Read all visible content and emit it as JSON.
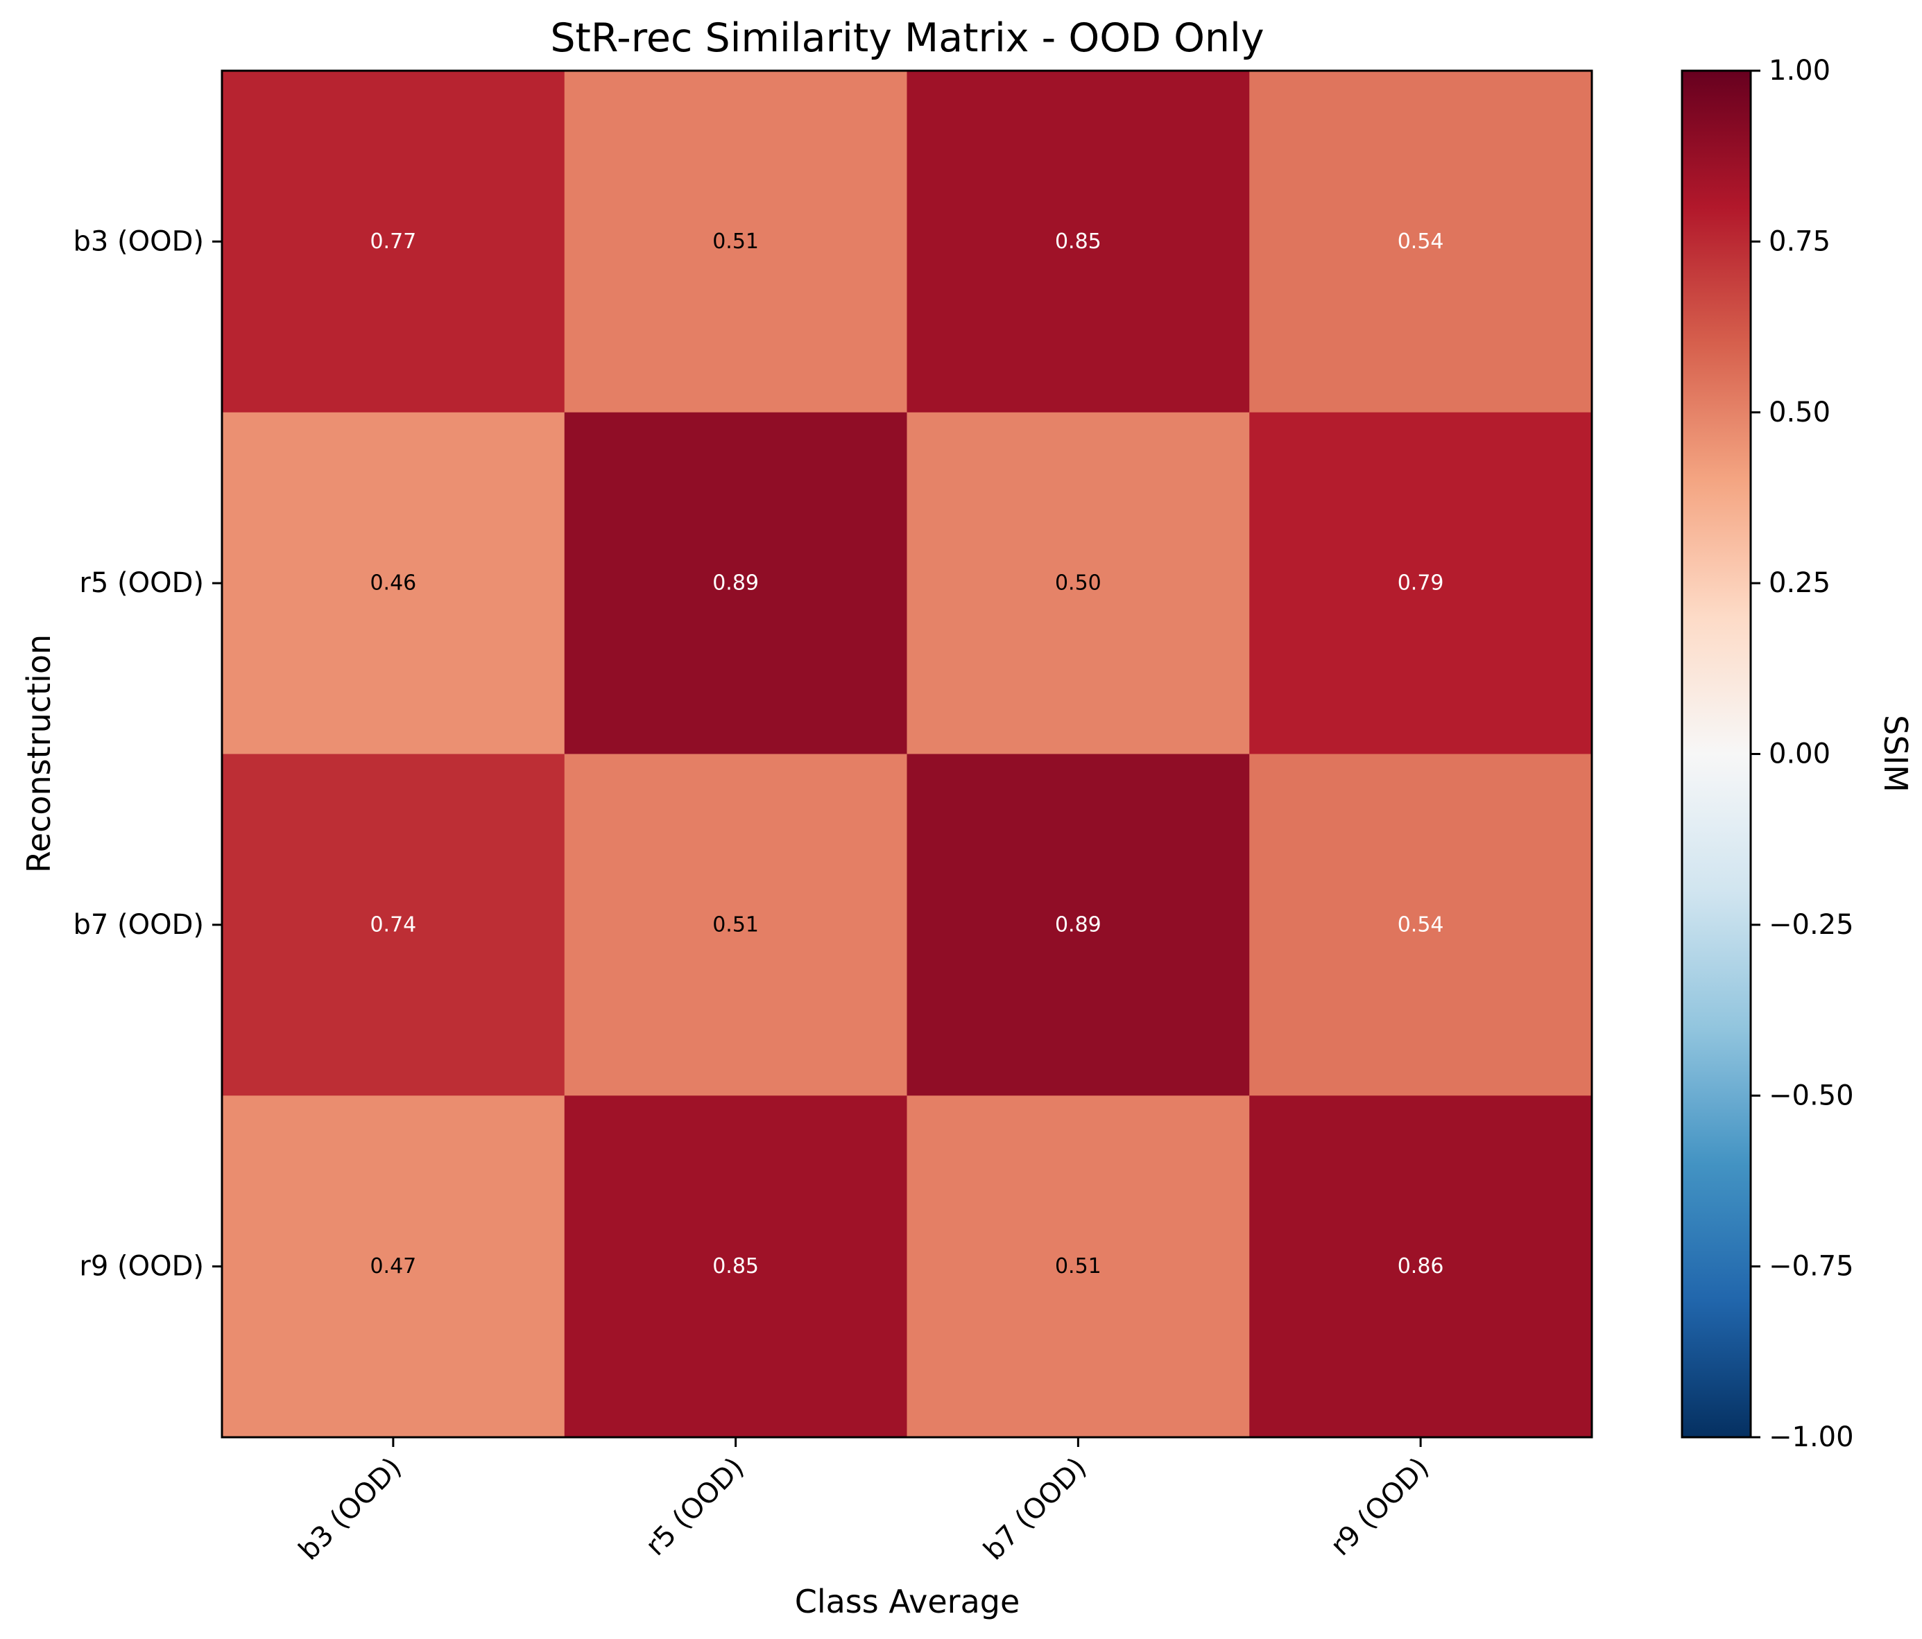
{
  "chart_data": {
    "type": "heatmap",
    "title": "StR-rec Similarity Matrix - OOD Only",
    "xlabel": "Class Average",
    "ylabel": "Reconstruction",
    "x_categories": [
      "b3 (OOD)",
      "r5 (OOD)",
      "b7 (OOD)",
      "r9 (OOD)"
    ],
    "y_categories": [
      "b3 (OOD)",
      "r5 (OOD)",
      "b7 (OOD)",
      "r9 (OOD)"
    ],
    "values": [
      [
        0.77,
        0.51,
        0.85,
        0.54
      ],
      [
        0.46,
        0.89,
        0.5,
        0.79
      ],
      [
        0.74,
        0.51,
        0.89,
        0.54
      ],
      [
        0.47,
        0.85,
        0.51,
        0.86
      ]
    ],
    "value_labels": [
      [
        "0.77",
        "0.51",
        "0.85",
        "0.54"
      ],
      [
        "0.46",
        "0.89",
        "0.50",
        "0.79"
      ],
      [
        "0.74",
        "0.51",
        "0.89",
        "0.54"
      ],
      [
        "0.47",
        "0.85",
        "0.51",
        "0.86"
      ]
    ],
    "colorbar": {
      "label": "SSIM",
      "range": [
        -1.0,
        1.0
      ],
      "colormap": "RdBu_r",
      "ticks": [
        "1.00",
        "0.75",
        "0.50",
        "0.25",
        "0.00",
        "−0.25",
        "−0.50",
        "−0.75",
        "−1.00"
      ]
    },
    "grid": false
  }
}
